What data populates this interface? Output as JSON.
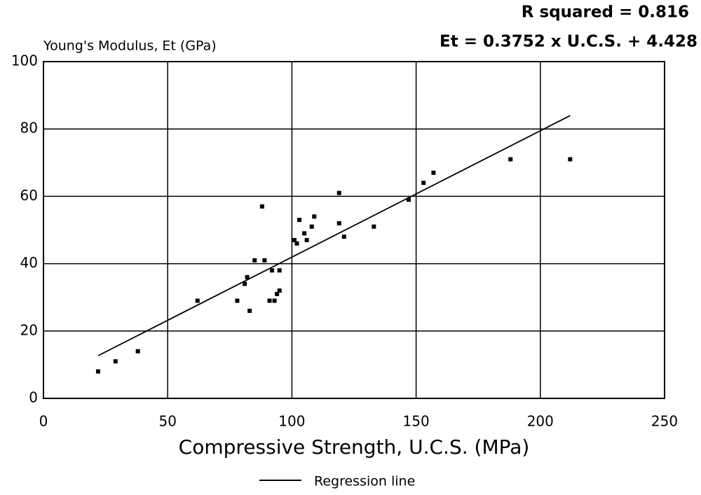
{
  "chart_data": {
    "type": "scatter",
    "ylabel": "Young's Modulus, Et (GPa)",
    "xlabel": "Compressive Strength, U.C.S. (MPa)",
    "annotations": [
      "R squared = 0.816",
      "Et = 0.3752 x U.C.S. + 4.428"
    ],
    "x": [
      22,
      29,
      38,
      62,
      78,
      81,
      82,
      83,
      85,
      88,
      89,
      91,
      92,
      93,
      94,
      95,
      95,
      101,
      102,
      103,
      105,
      106,
      108,
      109,
      119,
      119,
      121,
      133,
      147,
      153,
      157,
      188,
      212
    ],
    "values": [
      8,
      11,
      14,
      29,
      29,
      34,
      36,
      26,
      41,
      57,
      41,
      29,
      38,
      29,
      31,
      32,
      38,
      47,
      46,
      53,
      49,
      47,
      51,
      54,
      61,
      52,
      48,
      51,
      59,
      64,
      67,
      71,
      71
    ],
    "color": "#000000",
    "regression": {
      "name": "Regression line",
      "x": [
        22,
        212
      ],
      "values": [
        12.68,
        83.97
      ],
      "color": "#000000"
    },
    "xlim": [
      0,
      250
    ],
    "xticks": [
      0,
      50,
      100,
      150,
      200,
      250
    ],
    "ylim": [
      0,
      100
    ],
    "yticks": [
      0,
      20,
      40,
      60,
      80,
      100
    ],
    "grid": true,
    "legend": "bottom"
  }
}
